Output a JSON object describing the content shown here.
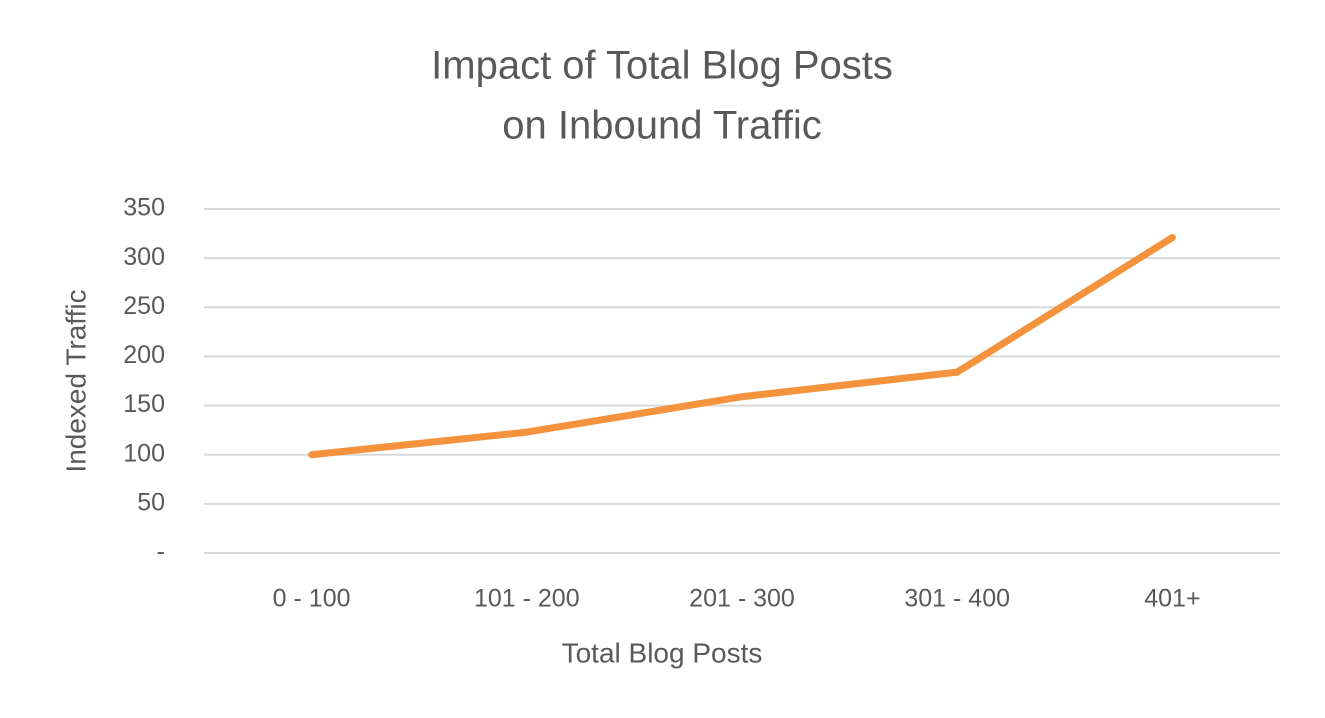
{
  "chart_data": {
    "type": "line",
    "title": [
      "Impact of Total Blog Posts",
      "on Inbound Traffic"
    ],
    "x_label": "Total Blog Posts",
    "y_label": "Indexed Traffic",
    "categories": [
      "0 - 100",
      "101 - 200",
      "201 - 300",
      "301 - 400",
      "401+"
    ],
    "series": [
      {
        "name": "Indexed Traffic",
        "color": "#f5923e",
        "values": [
          100,
          123,
          159,
          184,
          321
        ]
      }
    ],
    "ylim": [
      0,
      350
    ],
    "yticks": [
      {
        "value": 0,
        "label": "-"
      },
      50,
      100,
      150,
      200,
      250,
      300,
      350
    ],
    "grid": true
  }
}
